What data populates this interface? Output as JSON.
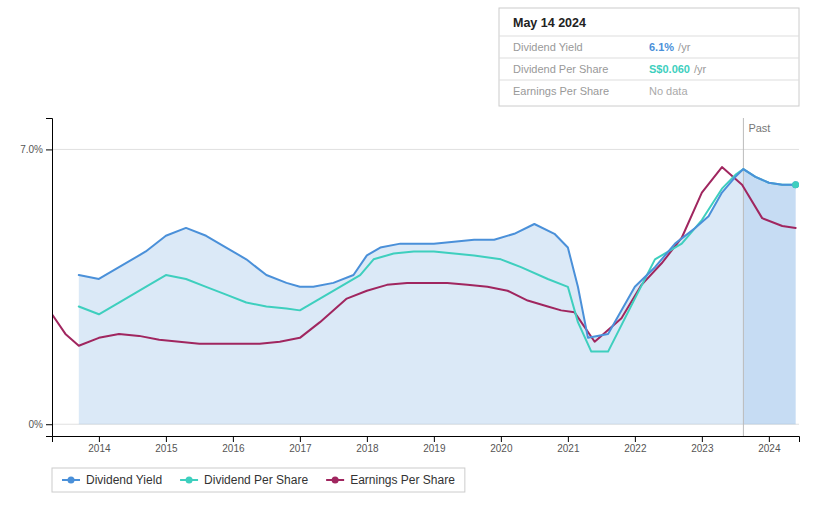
{
  "chart_data": {
    "type": "line",
    "xlim": [
      2013.3,
      2024.45
    ],
    "xticks": [
      2014,
      2015,
      2016,
      2017,
      2018,
      2019,
      2020,
      2021,
      2022,
      2023,
      2024
    ],
    "ylim": [
      -0.3,
      7.8
    ],
    "yticks": [
      {
        "value": 0,
        "label": "0%"
      },
      {
        "value": 7.0,
        "label": "7.0%"
      }
    ],
    "grid": true,
    "legend": "lower left",
    "annotations": [
      {
        "text": "Past",
        "x": 2023.62
      }
    ],
    "info_box": {
      "title": "May 14 2024",
      "rows": [
        {
          "label": "Dividend Yield",
          "value": "6.1%",
          "unit": "/yr"
        },
        {
          "label": "Dividend Per Share",
          "value": "S$0.060",
          "unit": "/yr"
        },
        {
          "label": "Earnings Per Share",
          "value": "No data"
        }
      ]
    },
    "series": [
      {
        "name": "Dividend Yield",
        "color": "#4a90d9",
        "type": "area",
        "marker": "end",
        "x": [
          2013.7,
          2014.0,
          2014.3,
          2014.7,
          2015.0,
          2015.3,
          2015.6,
          2015.9,
          2016.2,
          2016.5,
          2016.8,
          2017.0,
          2017.2,
          2017.5,
          2017.8,
          2018.0,
          2018.2,
          2018.5,
          2018.8,
          2019.0,
          2019.3,
          2019.6,
          2019.9,
          2020.2,
          2020.5,
          2020.8,
          2021.0,
          2021.15,
          2021.3,
          2021.6,
          2022.0,
          2022.3,
          2022.6,
          2022.9,
          2023.1,
          2023.3,
          2023.5,
          2023.62,
          2023.8,
          2024.0,
          2024.2,
          2024.4
        ],
        "values": [
          3.8,
          3.7,
          4.0,
          4.4,
          4.8,
          5.0,
          4.8,
          4.5,
          4.2,
          3.8,
          3.6,
          3.5,
          3.5,
          3.6,
          3.8,
          4.3,
          4.5,
          4.6,
          4.6,
          4.6,
          4.65,
          4.7,
          4.7,
          4.85,
          5.1,
          4.85,
          4.5,
          3.5,
          2.2,
          2.3,
          3.5,
          4.0,
          4.6,
          5.0,
          5.3,
          5.9,
          6.3,
          6.5,
          6.3,
          6.15,
          6.1,
          6.1
        ]
      },
      {
        "name": "Dividend Per Share",
        "color": "#3ecfbe",
        "marker": "end",
        "x": [
          2013.7,
          2014.0,
          2014.3,
          2014.7,
          2015.0,
          2015.3,
          2015.6,
          2015.9,
          2016.2,
          2016.5,
          2016.8,
          2017.0,
          2017.3,
          2017.6,
          2017.9,
          2018.1,
          2018.4,
          2018.7,
          2019.0,
          2019.3,
          2019.6,
          2020.0,
          2020.3,
          2020.7,
          2021.0,
          2021.15,
          2021.35,
          2021.6,
          2022.0,
          2022.3,
          2022.7,
          2023.0,
          2023.3,
          2023.5,
          2023.62,
          2023.8,
          2024.0,
          2024.2,
          2024.4
        ],
        "values": [
          3.0,
          2.8,
          3.1,
          3.5,
          3.8,
          3.7,
          3.5,
          3.3,
          3.1,
          3.0,
          2.95,
          2.9,
          3.2,
          3.5,
          3.8,
          4.2,
          4.35,
          4.4,
          4.4,
          4.35,
          4.3,
          4.2,
          4.0,
          3.7,
          3.5,
          2.6,
          1.85,
          1.85,
          3.2,
          4.2,
          4.6,
          5.2,
          6.0,
          6.35,
          6.5,
          6.3,
          6.15,
          6.1,
          6.1
        ]
      },
      {
        "name": "Earnings Per Share",
        "color": "#a0265f",
        "x": [
          2013.3,
          2013.5,
          2013.7,
          2014.0,
          2014.3,
          2014.6,
          2014.9,
          2015.2,
          2015.5,
          2015.8,
          2016.1,
          2016.4,
          2016.7,
          2017.0,
          2017.3,
          2017.7,
          2018.0,
          2018.3,
          2018.6,
          2018.9,
          2019.2,
          2019.5,
          2019.8,
          2020.1,
          2020.4,
          2020.7,
          2020.9,
          2021.1,
          2021.4,
          2021.8,
          2022.1,
          2022.4,
          2022.7,
          2023.0,
          2023.3,
          2023.6,
          2023.9,
          2024.2,
          2024.4
        ],
        "values": [
          2.8,
          2.3,
          2.0,
          2.2,
          2.3,
          2.25,
          2.15,
          2.1,
          2.05,
          2.05,
          2.05,
          2.05,
          2.1,
          2.2,
          2.6,
          3.2,
          3.4,
          3.55,
          3.6,
          3.6,
          3.6,
          3.55,
          3.5,
          3.4,
          3.15,
          3.0,
          2.9,
          2.85,
          2.1,
          2.7,
          3.55,
          4.1,
          4.75,
          5.9,
          6.55,
          6.1,
          5.25,
          5.05,
          5.0
        ]
      }
    ]
  }
}
